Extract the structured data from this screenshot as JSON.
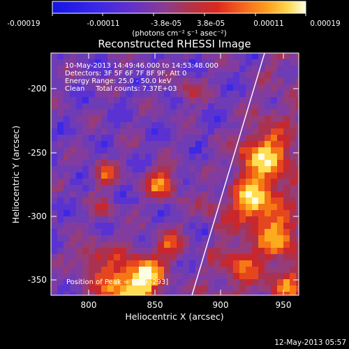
{
  "colorbar": {
    "tick_labels": [
      "-0.00019",
      "-0.00011",
      "-3.8e-05",
      "3.8e-05",
      "0.00011",
      "0.00019"
    ],
    "units_label": "(photons cm⁻² s⁻¹ asec⁻²)",
    "colors": [
      "#1e1ee6",
      "#3c28e6",
      "#5a32d2",
      "#6e3cb4",
      "#823ca0",
      "#963c78",
      "#aa3250",
      "#c8282d",
      "#e6461e",
      "#f57814",
      "#fcaa1e",
      "#ffdc50",
      "#ffffe1"
    ]
  },
  "plot": {
    "title": "Reconstructed RHESSI Image",
    "xlabel": "Heliocentric X (arcsec)",
    "ylabel": "Heliocentric Y (arcsec)",
    "x_ticks": [
      "800",
      "850",
      "900",
      "950"
    ],
    "y_ticks": [
      "-200",
      "-250",
      "-300",
      "-350"
    ]
  },
  "annotations": {
    "time_range": "10-May-2013 14:49:46.000 to 14:53:48.000",
    "detectors": "Detectors: 3F 5F 6F 7F 8F 9F, Att 0",
    "energy_range": "Energy Range: 25.0 - 50.0 keV",
    "clean_counts": "Clean     Total counts: 7.37E+03",
    "peak_position": "Position of Peak = [929,-293]"
  },
  "footer_timestamp": "12-May-2013 05:57"
}
